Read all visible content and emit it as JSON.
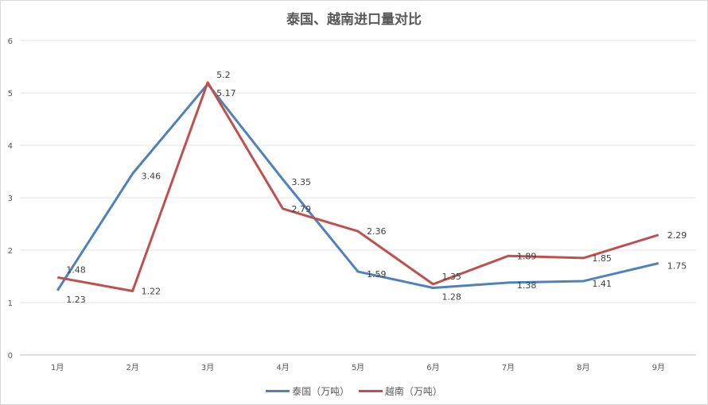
{
  "chart_data": {
    "type": "line",
    "title": "泰国、越南进口量对比",
    "categories": [
      "1月",
      "2月",
      "3月",
      "4月",
      "5月",
      "6月",
      "7月",
      "8月",
      "9月"
    ],
    "ylim": [
      0,
      6
    ],
    "yticks": [
      "0",
      "1",
      "2",
      "3",
      "4",
      "5",
      "6"
    ],
    "grid": true,
    "legend": "bottom",
    "series": [
      {
        "name": "泰国（万吨）",
        "color": "#4F81BD",
        "values": [
          1.23,
          3.46,
          5.17,
          3.35,
          1.59,
          1.28,
          1.38,
          1.41,
          1.75
        ]
      },
      {
        "name": "越南（万吨）",
        "color": "#C0504D",
        "values": [
          1.48,
          1.22,
          5.2,
          2.79,
          2.36,
          1.35,
          1.89,
          1.85,
          2.29
        ]
      }
    ]
  }
}
